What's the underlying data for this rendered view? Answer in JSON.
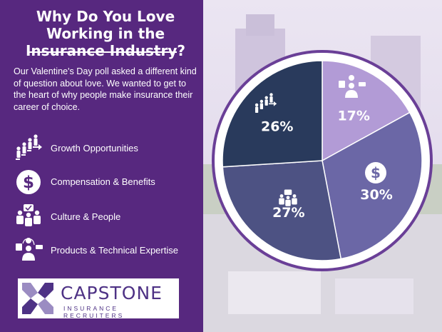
{
  "title": "Why Do You Love Working in the Insurance Industry?",
  "intro": "Our Valentine's Day poll asked a different kind of question about love. We wanted to get to the heart of why people make insurance their career of choice.",
  "legend": [
    {
      "label": "Growth Opportunities",
      "icon": "growth-ladder-icon"
    },
    {
      "label": "Compensation & Benefits",
      "icon": "dollar-coin-icon"
    },
    {
      "label": "Culture & People",
      "icon": "team-people-icon"
    },
    {
      "label": "Products & Technical Expertise",
      "icon": "expert-laptop-icon"
    }
  ],
  "logo": {
    "name": "CAPSTONE",
    "sub": "INSURANCE RECRUITERS"
  },
  "colors": {
    "panel": "#57287f",
    "growth": "#293a5c",
    "compensation": "#6b67a6",
    "culture": "#4d5283",
    "products": "#b29bd6",
    "ring": "#6a3f97"
  },
  "chart_data": {
    "type": "pie",
    "categories": [
      "Products & Technical Expertise",
      "Compensation & Benefits",
      "Culture & People",
      "Growth Opportunities"
    ],
    "values": [
      17,
      30,
      27,
      26
    ],
    "labels": [
      "17%",
      "30%",
      "27%",
      "26%"
    ]
  }
}
